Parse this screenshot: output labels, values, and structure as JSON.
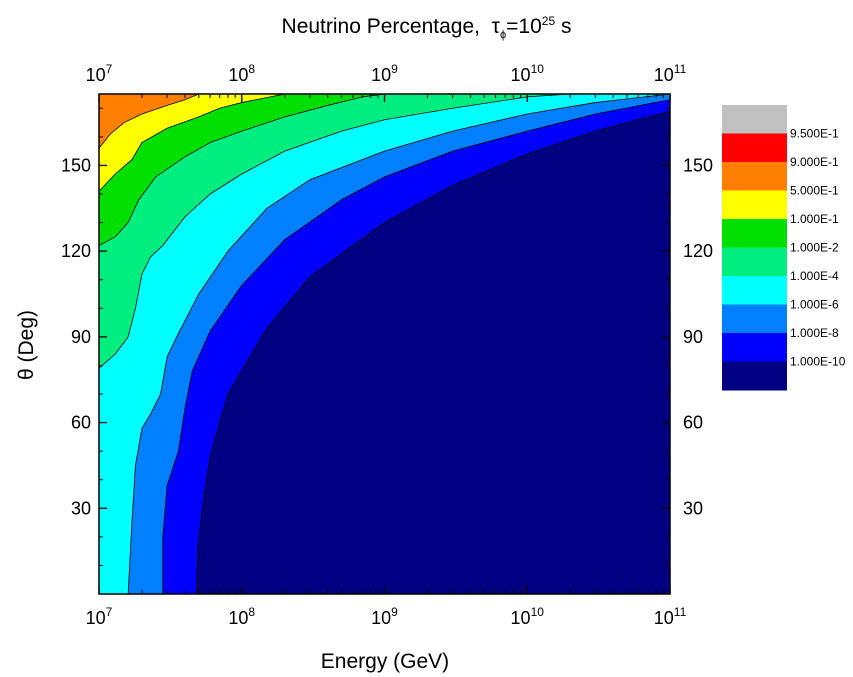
{
  "chart_data": {
    "type": "heatmap",
    "title": {
      "main": "Neutrino Percentage,",
      "tau_symbol": "τ",
      "tau_subscript": "ϕ",
      "equals": "=10",
      "exponent": "25",
      "unit": " s"
    },
    "xlabel": "Energy (GeV)",
    "ylabel": "θ (Deg)",
    "x_scale": "log",
    "xlim": [
      10000000,
      100000000000
    ],
    "ylim": [
      0,
      175
    ],
    "x_ticks": [
      {
        "base": "10",
        "exp": "7"
      },
      {
        "base": "10",
        "exp": "8"
      },
      {
        "base": "10",
        "exp": "9"
      },
      {
        "base": "10",
        "exp": "10"
      },
      {
        "base": "10",
        "exp": "11"
      }
    ],
    "y_ticks": [
      "30",
      "60",
      "90",
      "120",
      "150"
    ],
    "y_tick_values": [
      30,
      60,
      90,
      120,
      150
    ],
    "legend": {
      "placement": "right",
      "levels": [
        {
          "label": "9.500E-1",
          "color": "#c0c0c0"
        },
        {
          "label": "9.000E-1",
          "color": "#ff0000"
        },
        {
          "label": "5.000E-1",
          "color": "#ff8000"
        },
        {
          "label": "1.000E-1",
          "color": "#ffff00"
        },
        {
          "label": "1.000E-2",
          "color": "#00e000"
        },
        {
          "label": "1.000E-4",
          "color": "#00ee80"
        },
        {
          "label": "1.000E-6",
          "color": "#00ffff"
        },
        {
          "label": "1.000E-8",
          "color": "#0080ff"
        },
        {
          "label": "1.000E-10",
          "color": "#0000ff"
        },
        {
          "label": "",
          "color": "#000080"
        }
      ]
    },
    "contours": [
      {
        "level": "5.000E-1",
        "color": "#ff8000",
        "boundary": [
          [
            10000000,
            156
          ],
          [
            12000000,
            161
          ],
          [
            15000000,
            165
          ],
          [
            20000000,
            168
          ],
          [
            30000000,
            171
          ],
          [
            40000000,
            173
          ],
          [
            50000000,
            175
          ]
        ]
      },
      {
        "level": "1.000E-1",
        "color": "#ffff00",
        "boundary": [
          [
            10000000,
            141
          ],
          [
            13000000,
            147
          ],
          [
            17000000,
            152
          ],
          [
            20000000,
            158
          ],
          [
            30000000,
            163
          ],
          [
            50000000,
            167
          ],
          [
            70000000,
            170
          ],
          [
            100000000,
            172
          ],
          [
            200000000,
            175
          ]
        ]
      },
      {
        "level": "1.000E-2",
        "color": "#00e000",
        "boundary": [
          [
            10000000,
            122
          ],
          [
            13000000,
            125
          ],
          [
            16000000,
            130
          ],
          [
            19000000,
            138
          ],
          [
            25000000,
            146
          ],
          [
            40000000,
            153
          ],
          [
            60000000,
            158
          ],
          [
            100000000,
            162
          ],
          [
            200000000,
            167
          ],
          [
            400000000,
            171
          ],
          [
            700000000,
            174
          ],
          [
            1000000000,
            175
          ]
        ]
      },
      {
        "level": "1.000E-4",
        "color": "#00ee80",
        "boundary": [
          [
            10000000,
            79
          ],
          [
            13000000,
            84
          ],
          [
            16000000,
            90
          ],
          [
            18000000,
            100
          ],
          [
            20000000,
            112
          ],
          [
            23000000,
            118
          ],
          [
            28000000,
            122
          ],
          [
            40000000,
            132
          ],
          [
            60000000,
            140
          ],
          [
            100000000,
            147
          ],
          [
            200000000,
            155
          ],
          [
            500000000,
            162
          ],
          [
            1000000000,
            166
          ],
          [
            3000000000,
            170
          ],
          [
            10000000000,
            174
          ],
          [
            20000000000,
            175
          ]
        ]
      },
      {
        "level": "1.000E-6",
        "color": "#00ffff",
        "boundary": [
          [
            16000000,
            0
          ],
          [
            17000000,
            25
          ],
          [
            18000000,
            45
          ],
          [
            20000000,
            58
          ],
          [
            23000000,
            63
          ],
          [
            27000000,
            70
          ],
          [
            30000000,
            83
          ],
          [
            35000000,
            90
          ],
          [
            50000000,
            105
          ],
          [
            80000000,
            120
          ],
          [
            150000000,
            135
          ],
          [
            300000000,
            145
          ],
          [
            1000000000,
            155
          ],
          [
            3000000000,
            162
          ],
          [
            10000000000,
            168
          ],
          [
            30000000000,
            172
          ],
          [
            100000000000,
            175
          ]
        ]
      },
      {
        "level": "1.000E-8",
        "color": "#0080ff",
        "boundary": [
          [
            28000000,
            0
          ],
          [
            28000000,
            20
          ],
          [
            30000000,
            38
          ],
          [
            36000000,
            50
          ],
          [
            40000000,
            65
          ],
          [
            45000000,
            78
          ],
          [
            60000000,
            92
          ],
          [
            100000000,
            108
          ],
          [
            200000000,
            124
          ],
          [
            500000000,
            138
          ],
          [
            1000000000,
            146
          ],
          [
            3000000000,
            155
          ],
          [
            10000000000,
            162
          ],
          [
            30000000000,
            168
          ],
          [
            100000000000,
            173
          ]
        ]
      },
      {
        "level": "1.000E-10",
        "color": "#0000ff",
        "boundary": [
          [
            48000000,
            0
          ],
          [
            49000000,
            15
          ],
          [
            53000000,
            30
          ],
          [
            60000000,
            48
          ],
          [
            80000000,
            70
          ],
          [
            150000000,
            93
          ],
          [
            300000000,
            111
          ],
          [
            1000000000,
            130
          ],
          [
            3000000000,
            143
          ],
          [
            10000000000,
            154
          ],
          [
            30000000000,
            162
          ],
          [
            100000000000,
            169
          ]
        ]
      }
    ],
    "background_color": "#000080"
  }
}
